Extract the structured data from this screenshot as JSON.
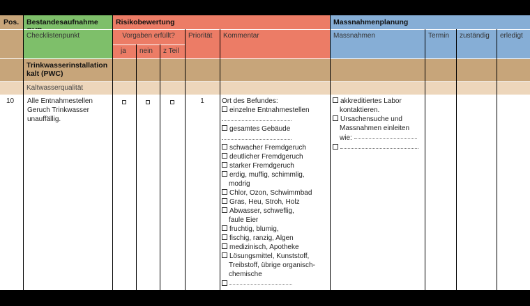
{
  "header": {
    "pos": "Pos.",
    "bestand": "Bestandesaufnahme GVP",
    "risiko": "Risikobewertung",
    "massnahmen_planung": "Massnahmenplanung"
  },
  "subheader": {
    "checklistenpunkt": "Checklistenpunkt",
    "vorgaben": "Vorgaben erfüllt?",
    "ja": "ja",
    "nein": "nein",
    "zteil": "z Teil",
    "prioritaet": "Priorität",
    "kommentar": "Kommentar",
    "massnahmen": "Massnahmen",
    "termin": "Termin",
    "zustaendig": "zuständig",
    "erledigt": "erledigt"
  },
  "section": {
    "title": "Trinkwasserinstallation kalt (PWC)",
    "subtitle": "Kaltwasserqualität"
  },
  "row": {
    "pos": "10",
    "checkpoint": "Alle Entnahmestellen Geruch Trinkwasser unauffällig.",
    "priority": "1",
    "comment_title": "Ort des Befundes:",
    "comment_items": [
      "einzelne Entnahmestellen",
      "gesamtes Gebäude",
      "schwacher Fremdgeruch",
      "deutlicher Fremdgeruch",
      "starker Fremdgeruch",
      "erdig, muffig, schimmlig,",
      "Chlor, Ozon, Schwimmbad",
      "Gras, Heu, Stroh, Holz",
      "Abwasser, schweflig,",
      "fruchtig, blumig,",
      "fischig, ranzig, Algen",
      "medizinisch, Apotheke",
      "Lösungsmittel, Kunststoff,"
    ],
    "comment_cont": {
      "modrig": "modrig",
      "faule_eier": "faule Eier",
      "treibstoff": "Treibstoff, übrige organisch-",
      "chemische": "chemische"
    },
    "measures": {
      "labor1": "akkreditiertes Labor",
      "labor2": "kontaktieren.",
      "ursache1": "Ursachensuche und",
      "ursache2": "Massnahmen einleiten",
      "ursache3": "wie:"
    }
  },
  "colors": {
    "green": "#7ebf6a",
    "red": "#ec7c66",
    "blue": "#86aed6",
    "tan": "#c7a57a",
    "light_tan": "#edd6bb"
  }
}
